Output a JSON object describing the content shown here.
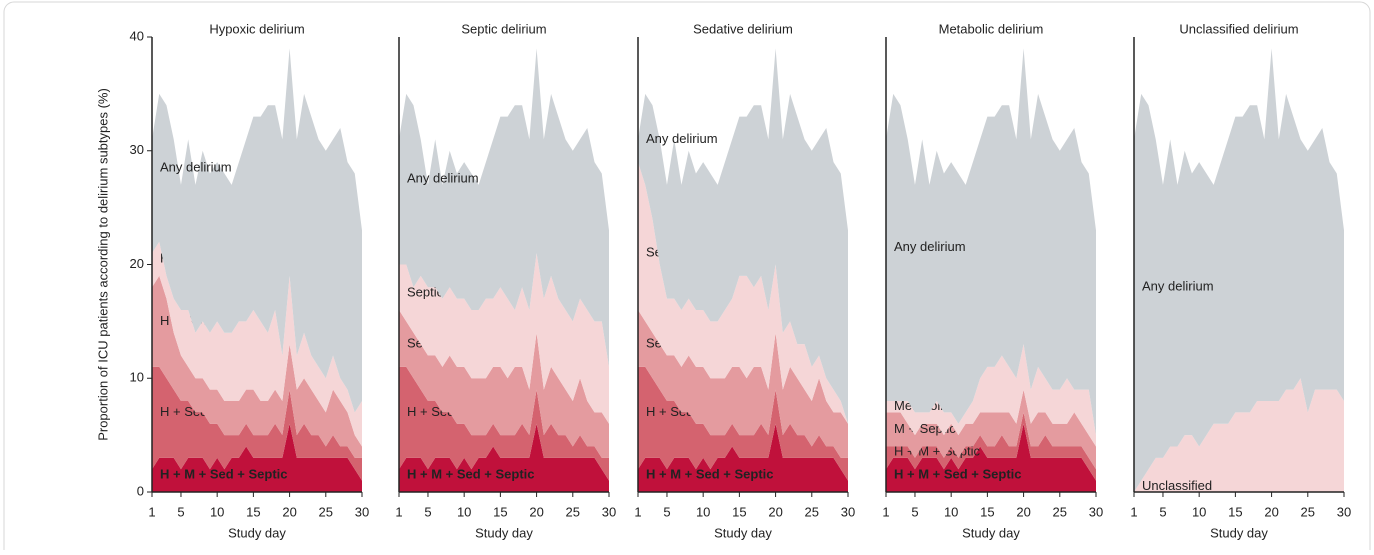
{
  "chart_data": [
    {
      "type": "stacked_area",
      "title": "Hypoxic delirium",
      "x_label": "Study day",
      "y_label": "Proportion of ICU patients according to delirium subtypes (%)",
      "x": [
        1,
        2,
        3,
        4,
        5,
        6,
        7,
        8,
        9,
        10,
        11,
        12,
        13,
        14,
        15,
        16,
        17,
        18,
        19,
        20,
        21,
        22,
        23,
        24,
        25,
        26,
        27,
        28,
        29,
        30
      ],
      "xlim": [
        1,
        30
      ],
      "xticks": [
        1,
        5,
        10,
        15,
        20,
        25,
        30
      ],
      "ylim": [
        0,
        40
      ],
      "yticks": [
        0,
        10,
        20,
        30,
        40
      ],
      "series": [
        {
          "name": "H + M + Sed + Septic",
          "color": "#c0113b",
          "values": [
            2,
            3,
            3,
            3,
            2,
            3,
            3,
            3,
            2,
            3,
            2,
            3,
            3,
            4,
            3,
            3,
            3,
            3,
            3,
            6,
            3,
            3,
            3,
            3,
            3,
            3,
            3,
            3,
            2,
            1
          ]
        },
        {
          "name": "H + Sed + Septic",
          "color": "#d4636f",
          "values": [
            9,
            8,
            7,
            6,
            6,
            5,
            4,
            4,
            4,
            3,
            3,
            2,
            2,
            2,
            2,
            2,
            2,
            3,
            2,
            3,
            2,
            3,
            2,
            2,
            1,
            2,
            1,
            1,
            1,
            2
          ]
        },
        {
          "name": "H + Sed",
          "color": "#e49b9f",
          "values": [
            7,
            8,
            7,
            5,
            4,
            3,
            3,
            3,
            3,
            3,
            3,
            3,
            3,
            3,
            4,
            3,
            3,
            3,
            3,
            4,
            4,
            4,
            4,
            3,
            3,
            4,
            4,
            3,
            2,
            1
          ]
        },
        {
          "name": "Hypoxic",
          "color": "#f5d6d7",
          "values": [
            3,
            3,
            2,
            3,
            4,
            5,
            4,
            5,
            5,
            6,
            6,
            6,
            7,
            6,
            7,
            7,
            6,
            7,
            4,
            6,
            3,
            4,
            3,
            3,
            3,
            3,
            2,
            2,
            2,
            4
          ]
        },
        {
          "name": "Any delirium",
          "color": "#cdd2d6",
          "values": [
            10,
            13,
            15,
            14,
            11,
            15,
            13,
            15,
            14,
            14,
            14,
            13,
            14,
            16,
            17,
            18,
            20,
            18,
            19,
            20,
            19,
            21,
            21,
            20,
            20,
            19,
            22,
            20,
            21,
            15
          ]
        }
      ]
    },
    {
      "type": "stacked_area",
      "title": "Septic delirium",
      "x_label": "Study day",
      "x": [
        1,
        2,
        3,
        4,
        5,
        6,
        7,
        8,
        9,
        10,
        11,
        12,
        13,
        14,
        15,
        16,
        17,
        18,
        19,
        20,
        21,
        22,
        23,
        24,
        25,
        26,
        27,
        28,
        29,
        30
      ],
      "xlim": [
        1,
        30
      ],
      "xticks": [
        1,
        5,
        10,
        15,
        20,
        25,
        30
      ],
      "ylim": [
        0,
        40
      ],
      "series": [
        {
          "name": "H + M + Sed + Septic",
          "color": "#c0113b",
          "values": [
            2,
            3,
            3,
            3,
            2,
            3,
            3,
            3,
            2,
            3,
            2,
            3,
            3,
            4,
            3,
            3,
            3,
            3,
            3,
            6,
            3,
            3,
            3,
            3,
            3,
            3,
            3,
            3,
            2,
            1
          ]
        },
        {
          "name": "H + Sed + Septic",
          "color": "#d4636f",
          "values": [
            9,
            8,
            7,
            6,
            6,
            5,
            4,
            4,
            4,
            3,
            3,
            2,
            2,
            2,
            2,
            2,
            2,
            3,
            2,
            3,
            2,
            3,
            2,
            2,
            1,
            2,
            1,
            1,
            1,
            2
          ]
        },
        {
          "name": "Sed + Septic",
          "color": "#e49b9f",
          "values": [
            5,
            4,
            4,
            4,
            4,
            4,
            4,
            5,
            5,
            5,
            5,
            5,
            5,
            5,
            6,
            5,
            6,
            5,
            4,
            5,
            4,
            5,
            5,
            4,
            4,
            5,
            4,
            3,
            4,
            3
          ]
        },
        {
          "name": "Septic",
          "color": "#f5d6d7",
          "values": [
            4,
            5,
            4,
            6,
            6,
            6,
            6,
            6,
            6,
            6,
            6,
            6,
            7,
            6,
            7,
            7,
            5,
            7,
            7,
            7,
            8,
            8,
            7,
            7,
            7,
            7,
            8,
            8,
            8,
            5
          ]
        },
        {
          "name": "Any delirium",
          "color": "#cdd2d6",
          "values": [
            11,
            15,
            16,
            12,
            9,
            13,
            10,
            12,
            11,
            12,
            12,
            11,
            12,
            14,
            15,
            16,
            18,
            16,
            15,
            18,
            14,
            16,
            16,
            15,
            15,
            14,
            16,
            14,
            13,
            12
          ]
        }
      ]
    },
    {
      "type": "stacked_area",
      "title": "Sedative delirium",
      "x_label": "Study day",
      "x": [
        1,
        2,
        3,
        4,
        5,
        6,
        7,
        8,
        9,
        10,
        11,
        12,
        13,
        14,
        15,
        16,
        17,
        18,
        19,
        20,
        21,
        22,
        23,
        24,
        25,
        26,
        27,
        28,
        29,
        30
      ],
      "xlim": [
        1,
        30
      ],
      "xticks": [
        1,
        5,
        10,
        15,
        20,
        25,
        30
      ],
      "ylim": [
        0,
        40
      ],
      "series": [
        {
          "name": "H + M + Sed + Septic",
          "color": "#c0113b",
          "values": [
            2,
            3,
            3,
            3,
            2,
            3,
            3,
            3,
            2,
            3,
            2,
            3,
            3,
            4,
            3,
            3,
            3,
            3,
            3,
            6,
            3,
            3,
            3,
            3,
            3,
            3,
            3,
            3,
            2,
            1
          ]
        },
        {
          "name": "H + Sed + Septic",
          "color": "#d4636f",
          "values": [
            9,
            8,
            7,
            6,
            6,
            5,
            4,
            4,
            4,
            3,
            3,
            2,
            2,
            2,
            2,
            2,
            2,
            3,
            2,
            3,
            2,
            3,
            2,
            2,
            1,
            2,
            1,
            1,
            1,
            2
          ]
        },
        {
          "name": "Sed + Septic",
          "color": "#e49b9f",
          "values": [
            5,
            4,
            4,
            4,
            4,
            4,
            4,
            5,
            5,
            5,
            5,
            5,
            5,
            5,
            6,
            5,
            6,
            5,
            4,
            5,
            4,
            5,
            5,
            4,
            4,
            5,
            4,
            3,
            4,
            3
          ]
        },
        {
          "name": "Sedative",
          "color": "#f5d6d7",
          "values": [
            13,
            12,
            10,
            7,
            5,
            5,
            5,
            5,
            5,
            5,
            5,
            5,
            6,
            6,
            8,
            9,
            7,
            8,
            7,
            6,
            5,
            4,
            3,
            4,
            3,
            2,
            2,
            2,
            1,
            0
          ]
        },
        {
          "name": "Any delirium",
          "color": "#cdd2d6",
          "values": [
            2,
            8,
            10,
            11,
            10,
            14,
            11,
            13,
            12,
            13,
            13,
            12,
            13,
            14,
            14,
            14,
            16,
            15,
            15,
            19,
            17,
            20,
            20,
            18,
            19,
            19,
            22,
            20,
            20,
            17
          ]
        }
      ]
    },
    {
      "type": "stacked_area",
      "title": "Metabolic delirium",
      "x_label": "Study day",
      "x": [
        1,
        2,
        3,
        4,
        5,
        6,
        7,
        8,
        9,
        10,
        11,
        12,
        13,
        14,
        15,
        16,
        17,
        18,
        19,
        20,
        21,
        22,
        23,
        24,
        25,
        26,
        27,
        28,
        29,
        30
      ],
      "xlim": [
        1,
        30
      ],
      "xticks": [
        1,
        5,
        10,
        15,
        20,
        25,
        30
      ],
      "ylim": [
        0,
        40
      ],
      "series": [
        {
          "name": "H + M + Sed + Septic",
          "color": "#c0113b",
          "values": [
            2,
            3,
            3,
            3,
            2,
            3,
            3,
            3,
            2,
            3,
            2,
            3,
            3,
            4,
            3,
            3,
            3,
            3,
            3,
            6,
            3,
            3,
            3,
            3,
            3,
            3,
            3,
            3,
            2,
            1
          ]
        },
        {
          "name": "H + M + Septic",
          "color": "#d4636f",
          "values": [
            2,
            1,
            1,
            1,
            1,
            1,
            1,
            1,
            1,
            1,
            1,
            1,
            1,
            1,
            1,
            1,
            2,
            1,
            1,
            1,
            1,
            1,
            2,
            1,
            1,
            1,
            1,
            1,
            1,
            1
          ]
        },
        {
          "name": "M + Septic",
          "color": "#e49b9f",
          "values": [
            3,
            3,
            3,
            2,
            2,
            2,
            2,
            2,
            2,
            2,
            2,
            2,
            2,
            2,
            3,
            3,
            2,
            3,
            2,
            2,
            2,
            3,
            2,
            2,
            2,
            2,
            3,
            2,
            2,
            2
          ]
        },
        {
          "name": "Metabolic",
          "color": "#f5d6d7",
          "values": [
            1,
            1,
            1,
            2,
            2,
            1,
            1,
            2,
            2,
            1,
            1,
            1,
            2,
            3,
            4,
            4,
            5,
            4,
            4,
            4,
            3,
            4,
            3,
            3,
            3,
            4,
            2,
            3,
            4,
            1
          ]
        },
        {
          "name": "Any delirium",
          "color": "#cdd2d6",
          "values": [
            23,
            27,
            26,
            23,
            20,
            24,
            20,
            22,
            21,
            22,
            22,
            20,
            21,
            21,
            22,
            22,
            22,
            23,
            21,
            26,
            22,
            24,
            23,
            22,
            21,
            21,
            23,
            20,
            19,
            18
          ]
        }
      ]
    },
    {
      "type": "stacked_area",
      "title": "Unclassified delirium",
      "x_label": "Study day",
      "x": [
        1,
        2,
        3,
        4,
        5,
        6,
        7,
        8,
        9,
        10,
        11,
        12,
        13,
        14,
        15,
        16,
        17,
        18,
        19,
        20,
        21,
        22,
        23,
        24,
        25,
        26,
        27,
        28,
        29,
        30
      ],
      "xlim": [
        1,
        30
      ],
      "xticks": [
        1,
        5,
        10,
        15,
        20,
        25,
        30
      ],
      "ylim": [
        0,
        40
      ],
      "series": [
        {
          "name": "Unclassified",
          "color": "#f5d6d7",
          "values": [
            0,
            1,
            2,
            3,
            3,
            4,
            4,
            5,
            5,
            4,
            5,
            6,
            6,
            6,
            7,
            7,
            7,
            8,
            8,
            8,
            8,
            9,
            9,
            10,
            7,
            9,
            9,
            9,
            9,
            8
          ]
        },
        {
          "name": "Any delirium",
          "color": "#cdd2d6",
          "values": [
            31,
            34,
            32,
            28,
            24,
            27,
            23,
            25,
            23,
            25,
            23,
            21,
            23,
            25,
            26,
            26,
            27,
            26,
            23,
            31,
            23,
            26,
            24,
            21,
            23,
            22,
            23,
            20,
            19,
            15
          ]
        }
      ]
    }
  ]
}
